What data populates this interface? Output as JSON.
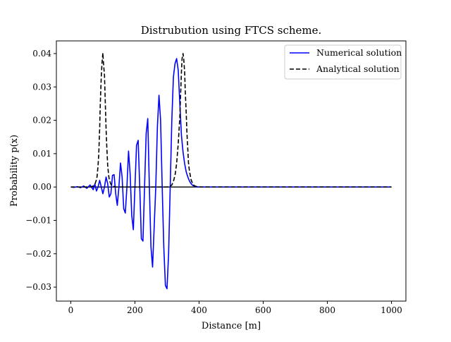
{
  "chart_data": {
    "type": "line",
    "title": "Distrubution using FTCS scheme.",
    "xlabel": "Distance [m]",
    "ylabel": "Probability p(x)",
    "xlim": [
      -45,
      1045
    ],
    "ylim": [
      -0.0342,
      0.0438
    ],
    "xticks": [
      0,
      200,
      400,
      600,
      800,
      1000
    ],
    "yticks": [
      -0.03,
      -0.02,
      -0.01,
      0.0,
      0.01,
      0.02,
      0.03,
      0.04
    ],
    "xtick_labels": [
      "0",
      "200",
      "400",
      "600",
      "800",
      "1000"
    ],
    "ytick_labels": [
      "−0.03",
      "−0.02",
      "−0.01",
      "0.00",
      "0.01",
      "0.02",
      "0.03",
      "0.04"
    ],
    "grid": false,
    "legend_position": "top-right",
    "series": [
      {
        "name": "Numerical solution",
        "color": "#0000ff",
        "style": "solid",
        "x": [
          0,
          10,
          20,
          30,
          40,
          50,
          60,
          70,
          75,
          80,
          85,
          90,
          95,
          100,
          105,
          110,
          115,
          120,
          125,
          130,
          135,
          140,
          145,
          150,
          155,
          160,
          165,
          170,
          175,
          180,
          185,
          190,
          195,
          200,
          205,
          210,
          215,
          220,
          225,
          230,
          235,
          240,
          245,
          250,
          255,
          260,
          265,
          270,
          275,
          280,
          285,
          290,
          295,
          300,
          305,
          310,
          315,
          320,
          325,
          330,
          335,
          340,
          345,
          350,
          355,
          360,
          365,
          370,
          375,
          380,
          385,
          390,
          400,
          420,
          450,
          500,
          600,
          700,
          800,
          900,
          1000
        ],
        "y": [
          0.0,
          -0.0001,
          0.0001,
          -0.0002,
          0.0003,
          -0.0004,
          0.0006,
          -0.0008,
          0.0009,
          -0.0012,
          0.0,
          0.002,
          0.0,
          -0.002,
          0.0,
          0.003,
          0.001,
          -0.003,
          -0.002,
          0.0035,
          0.0037,
          -0.002,
          -0.0055,
          0.0,
          0.0072,
          0.003,
          -0.0065,
          -0.0078,
          0.0,
          0.0108,
          0.004,
          -0.0085,
          -0.0128,
          0.0,
          0.0125,
          0.014,
          0.0,
          -0.0155,
          -0.0162,
          0.0,
          0.016,
          0.0205,
          0.0,
          -0.018,
          -0.024,
          -0.012,
          0.0,
          0.018,
          0.0275,
          0.02,
          0.0,
          -0.018,
          -0.0295,
          -0.0305,
          -0.02,
          0.0,
          0.02,
          0.033,
          0.037,
          0.0385,
          0.035,
          0.025,
          0.0155,
          0.0105,
          0.007,
          0.0045,
          0.003,
          0.0018,
          0.001,
          0.0005,
          0.0003,
          0.0001,
          0.0,
          0.0,
          0.0,
          0.0,
          0.0,
          0.0,
          0.0,
          0.0,
          0.0
        ]
      },
      {
        "name": "Analytical solution",
        "color": "#000000",
        "style": "dashed",
        "x": [
          0,
          40,
          50,
          60,
          65,
          70,
          75,
          80,
          82,
          85,
          87,
          90,
          92,
          95,
          97,
          100,
          102,
          105,
          107,
          110,
          112,
          115,
          118,
          120,
          125,
          130,
          140,
          300,
          310,
          315,
          320,
          325,
          330,
          335,
          340,
          342,
          345,
          347,
          350,
          352,
          355,
          357,
          360,
          362,
          365,
          367,
          370,
          375,
          380,
          385,
          390,
          395,
          400,
          420,
          500,
          700,
          1000
        ],
        "y": [
          0.0,
          0.0,
          0.0,
          0.0,
          0.0001,
          0.0003,
          0.0008,
          0.0022,
          0.0032,
          0.0065,
          0.0095,
          0.0175,
          0.025,
          0.033,
          0.0368,
          0.0402,
          0.037,
          0.0335,
          0.027,
          0.0175,
          0.0125,
          0.0065,
          0.0035,
          0.0022,
          0.0008,
          0.0003,
          0.0,
          0.0,
          0.0002,
          0.0006,
          0.0017,
          0.0035,
          0.007,
          0.013,
          0.021,
          0.0265,
          0.0345,
          0.0385,
          0.04,
          0.0385,
          0.0345,
          0.0285,
          0.022,
          0.0165,
          0.011,
          0.0072,
          0.0048,
          0.0022,
          0.001,
          0.0004,
          0.0002,
          0.0001,
          0.0,
          0.0,
          0.0,
          0.0,
          0.0
        ]
      }
    ],
    "reference_lines": [
      {
        "orientation": "horizontal",
        "y": 0.0,
        "x_from": 0,
        "x_to": 1000,
        "color": "#000000"
      }
    ]
  }
}
